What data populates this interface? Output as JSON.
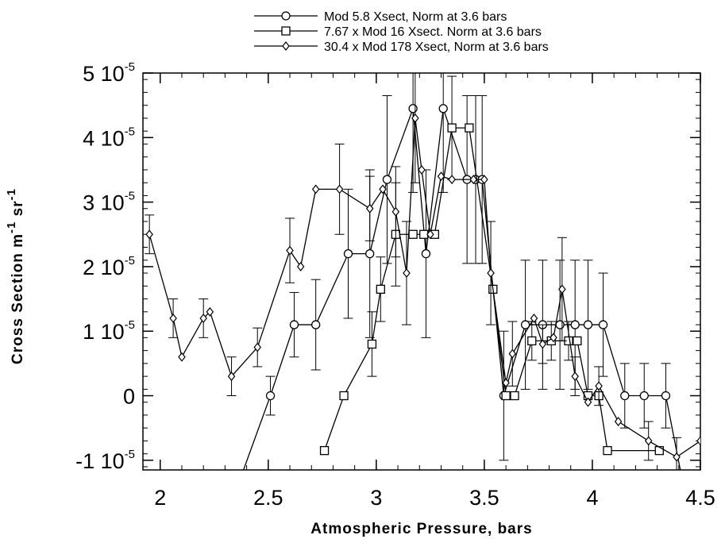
{
  "chart_data": {
    "type": "line",
    "xlabel": "Atmospheric  Pressure,  bars",
    "ylabel_main": "Cross  Section  m",
    "ylabel_sup1": "-1",
    "ylabel_mid": " sr",
    "ylabel_sup2": "-1",
    "xlim": [
      1.92,
      4.5
    ],
    "ylim": [
      -1.15e-05,
      5e-05
    ],
    "x_ticks": [
      {
        "value": 2,
        "label": "2"
      },
      {
        "value": 2.5,
        "label": "2.5"
      },
      {
        "value": 3,
        "label": "3"
      },
      {
        "value": 3.5,
        "label": "3.5"
      },
      {
        "value": 4,
        "label": "4"
      },
      {
        "value": 4.5,
        "label": "4.5"
      }
    ],
    "y_ticks": [
      {
        "value": -1e-05,
        "label": "-1 10",
        "exp": "-5"
      },
      {
        "value": 0,
        "label": "0",
        "exp": ""
      },
      {
        "value": 1e-05,
        "label": "1 10",
        "exp": "-5"
      },
      {
        "value": 2e-05,
        "label": "2 10",
        "exp": "-5"
      },
      {
        "value": 3e-05,
        "label": "3 10",
        "exp": "-5"
      },
      {
        "value": 4e-05,
        "label": "4 10",
        "exp": "-5"
      },
      {
        "value": 5e-05,
        "label": "5 10",
        "exp": "-5"
      }
    ],
    "grid": false,
    "legend_position": "top-center",
    "series": [
      {
        "name": "Mod 5.8 Xsect, Norm at 3.6 bars",
        "marker": "circle",
        "points": [
          [
            2.38,
            -1.2e-05,
            0
          ],
          [
            2.51,
            0,
            3e-06
          ],
          [
            2.62,
            1.1e-05,
            5e-06
          ],
          [
            2.72,
            1.1e-05,
            7e-06
          ],
          [
            2.87,
            2.2e-05,
            1e-05
          ],
          [
            2.97,
            2.2e-05,
            1.3e-05
          ],
          [
            3.05,
            3.35e-05,
            1.3e-05
          ],
          [
            3.17,
            4.45e-05,
            1.3e-05
          ],
          [
            3.23,
            2.2e-05,
            1.3e-05
          ],
          [
            3.31,
            4.45e-05,
            1.3e-05
          ],
          [
            3.42,
            3.35e-05,
            1.3e-05
          ],
          [
            3.46,
            3.35e-05,
            1.3e-05
          ],
          [
            3.49,
            3.35e-05,
            1.3e-05
          ],
          [
            3.59,
            0,
            1e-05
          ],
          [
            3.69,
            1.1e-05,
            1e-05
          ],
          [
            3.77,
            1.1e-05,
            1e-05
          ],
          [
            3.85,
            1.1e-05,
            1e-05
          ],
          [
            3.92,
            1.1e-05,
            1e-05
          ],
          [
            3.98,
            1.1e-05,
            1e-05
          ],
          [
            4.05,
            1.1e-05,
            8e-06
          ],
          [
            4.15,
            0,
            5e-06
          ],
          [
            4.24,
            0,
            5e-06
          ],
          [
            4.34,
            0,
            5e-06
          ],
          [
            4.41,
            -1.2e-05,
            0
          ]
        ]
      },
      {
        "name": "7.67 x Mod 16 Xsect. Norm at 3.6 bars",
        "marker": "square",
        "points": [
          [
            2.76,
            -8.5e-06,
            0
          ],
          [
            2.85,
            0,
            0
          ],
          [
            2.98,
            8e-06,
            5e-06
          ],
          [
            3.02,
            1.65e-05,
            5e-06
          ],
          [
            3.09,
            2.5e-05,
            8e-06
          ],
          [
            3.17,
            2.5e-05,
            0
          ],
          [
            3.22,
            2.5e-05,
            0
          ],
          [
            3.27,
            2.5e-05,
            0
          ],
          [
            3.35,
            4.15e-05,
            8e-06
          ],
          [
            3.43,
            4.15e-05,
            0
          ],
          [
            3.54,
            1.65e-05,
            0
          ],
          [
            3.6,
            0,
            0
          ],
          [
            3.64,
            0,
            0
          ],
          [
            3.72,
            8.5e-06,
            3e-06
          ],
          [
            3.81,
            8.5e-06,
            3e-06
          ],
          [
            3.89,
            8.5e-06,
            3e-06
          ],
          [
            3.93,
            8.5e-06,
            0
          ],
          [
            3.98,
            0,
            0
          ],
          [
            4.03,
            0,
            0
          ],
          [
            4.07,
            -8.5e-06,
            0
          ],
          [
            4.31,
            -8.5e-06,
            0
          ]
        ]
      },
      {
        "name": "30.4 x Mod 178 Xsect, Norm at 3.6 bars",
        "marker": "diamond",
        "points": [
          [
            1.95,
            2.5e-05,
            3e-06
          ],
          [
            2.06,
            1.2e-05,
            3e-06
          ],
          [
            2.1,
            6e-06,
            0
          ],
          [
            2.2,
            1.2e-05,
            3e-06
          ],
          [
            2.23,
            1.3e-05,
            0
          ],
          [
            2.33,
            3e-06,
            3e-06
          ],
          [
            2.45,
            7.5e-06,
            3e-06
          ],
          [
            2.6,
            2.25e-05,
            5e-06
          ],
          [
            2.65,
            2e-05,
            0
          ],
          [
            2.72,
            3.2e-05,
            0
          ],
          [
            2.83,
            3.2e-05,
            7e-06
          ],
          [
            2.97,
            2.9e-05,
            5e-06
          ],
          [
            3.03,
            3.2e-05,
            0
          ],
          [
            3.09,
            2.85e-05,
            7e-06
          ],
          [
            3.14,
            1.9e-05,
            8e-06
          ],
          [
            3.18,
            4.3e-05,
            1e-05
          ],
          [
            3.21,
            3.5e-05,
            0
          ],
          [
            3.25,
            2.5e-05,
            0
          ],
          [
            3.3,
            3.4e-05,
            0
          ],
          [
            3.35,
            3.35e-05,
            0
          ],
          [
            3.45,
            3.35e-05,
            0
          ],
          [
            3.5,
            3.35e-05,
            0
          ],
          [
            3.53,
            1.9e-05,
            8e-06
          ],
          [
            3.6,
            2e-06,
            0
          ],
          [
            3.63,
            6.5e-06,
            5e-06
          ],
          [
            3.73,
            1.2e-05,
            0
          ],
          [
            3.77,
            8e-06,
            3e-06
          ],
          [
            3.82,
            9e-06,
            0
          ],
          [
            3.86,
            1.65e-05,
            8e-06
          ],
          [
            3.92,
            3e-06,
            3e-06
          ],
          [
            3.98,
            -1e-06,
            0
          ],
          [
            4.03,
            1.5e-06,
            3e-06
          ],
          [
            4.12,
            -4e-06,
            0
          ],
          [
            4.26,
            -7e-06,
            3e-06
          ],
          [
            4.39,
            -9.5e-06,
            3e-06
          ],
          [
            4.5,
            -7e-06,
            0
          ]
        ]
      }
    ]
  }
}
